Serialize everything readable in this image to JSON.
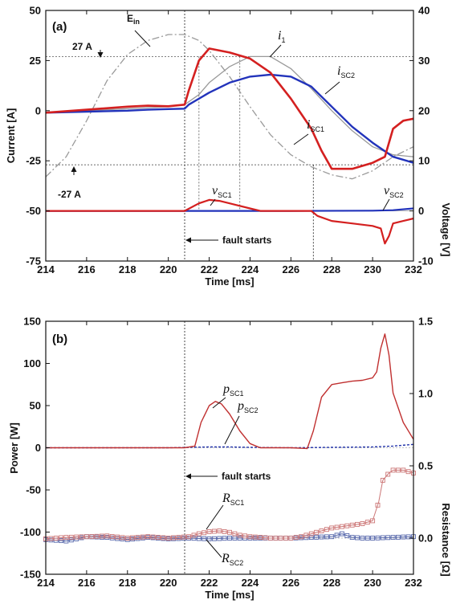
{
  "chart_data": [
    {
      "type": "line",
      "panel_label": "(a)",
      "xlabel": "Time [ms]",
      "ylabel": "Current [A]",
      "ylabel_right": "Voltage [V]",
      "xlim": [
        214,
        232
      ],
      "ylim": [
        -75,
        50
      ],
      "ylim_right": [
        -10,
        40
      ],
      "x_ticks": [
        "214",
        "216",
        "218",
        "220",
        "222",
        "224",
        "226",
        "228",
        "230",
        "232"
      ],
      "y_ticks": [
        "50",
        "25",
        "0",
        "-25",
        "-50",
        "-75"
      ],
      "y_ticks_right": [
        "40",
        "30",
        "20",
        "10",
        "0",
        "-10"
      ],
      "colors": {
        "i_sc1": "#d42020",
        "i_sc2": "#2233bb",
        "v_sc1": "#d42020",
        "v_sc2": "#2233bb",
        "i1": "#999999",
        "e_in": "#999999"
      },
      "series": [
        {
          "name": "i1",
          "axis": "left",
          "x": [
            214,
            216,
            218,
            219,
            220,
            220.8,
            221.5,
            222,
            223,
            224,
            225,
            226,
            227,
            228,
            229,
            230,
            231,
            232
          ],
          "values": [
            -1,
            0,
            1,
            1.5,
            2,
            3,
            8,
            14,
            22,
            27,
            27,
            21,
            11,
            0,
            -10,
            -18,
            -22,
            -23
          ]
        },
        {
          "name": "iSC1",
          "axis": "left",
          "x": [
            214,
            216,
            218,
            219,
            220,
            220.8,
            221,
            221.5,
            222,
            222.5,
            223,
            224,
            225,
            226,
            227,
            227.5,
            228,
            229,
            230,
            230.6,
            231,
            231.5,
            232
          ],
          "values": [
            -1,
            0.5,
            2,
            2.5,
            2.2,
            3,
            10,
            25,
            31,
            30,
            29,
            26,
            19,
            6,
            -9,
            -20,
            -29,
            -29,
            -26,
            -23,
            -9,
            -5,
            -4
          ]
        },
        {
          "name": "iSC2",
          "axis": "left",
          "x": [
            214,
            216,
            218,
            219,
            220,
            220.8,
            221,
            222,
            223,
            224,
            225,
            226,
            227,
            228,
            229,
            230,
            231,
            232
          ],
          "values": [
            -1,
            -0.5,
            0,
            0.5,
            0.8,
            1,
            3,
            9,
            14,
            17,
            18,
            17,
            12,
            2,
            -8,
            -16,
            -23,
            -26
          ]
        },
        {
          "name": "Ein",
          "axis": "left",
          "x": [
            214,
            215,
            216,
            217,
            218,
            219,
            220,
            220.8,
            221.5,
            222,
            223,
            224,
            225,
            226,
            227,
            228,
            229,
            230,
            231,
            232
          ],
          "values": [
            -33,
            -23,
            -5,
            15,
            28,
            35,
            38,
            38,
            35,
            30,
            17,
            2,
            -12,
            -22,
            -28,
            -32,
            -34,
            -30,
            -23,
            -18
          ]
        },
        {
          "name": "vSC1",
          "axis": "right",
          "x": [
            214,
            220.8,
            221.5,
            222,
            222.5,
            223,
            224,
            224.5,
            227,
            227.3,
            228,
            229,
            230,
            230.4,
            230.6,
            230.8,
            231,
            231.5,
            232
          ],
          "values": [
            0,
            0,
            1.5,
            2.2,
            2,
            1.5,
            0.5,
            0,
            0,
            -1,
            -2,
            -2.5,
            -3,
            -3.5,
            -6.5,
            -5,
            -2.5,
            -2,
            -1.5
          ]
        },
        {
          "name": "vSC2",
          "axis": "right",
          "x": [
            214,
            218,
            222,
            226,
            230,
            231,
            232
          ],
          "values": [
            0,
            0,
            0,
            0,
            0.05,
            0.15,
            0.5
          ]
        }
      ],
      "annotations": {
        "plus_27": "27 A",
        "minus_27": "-27 A",
        "fault": "fault starts",
        "fault_time_ms": 220.8,
        "clear_time_ms": 227.1,
        "e_in": "E",
        "e_in_sub": "in",
        "i1": "i",
        "i1_sub": "1",
        "i_sc2": "i",
        "i_sc2_sub": "SC2",
        "i_sc1": "i",
        "i_sc1_sub": "SC1",
        "v_sc1": "v",
        "v_sc1_sub": "SC1",
        "v_sc2": "v",
        "v_sc2_sub": "SC2"
      }
    },
    {
      "type": "line",
      "panel_label": "(b)",
      "xlabel": "Time [ms]",
      "ylabel": "Power [W]",
      "ylabel_right": "Resistance [Ω]",
      "xlim": [
        214,
        232
      ],
      "ylim": [
        -150,
        150
      ],
      "ylim_right": [
        -0.25,
        1.5
      ],
      "x_ticks": [
        "214",
        "216",
        "218",
        "220",
        "222",
        "224",
        "226",
        "228",
        "230",
        "232"
      ],
      "y_ticks": [
        "150",
        "100",
        "50",
        "0",
        "-50",
        "-100",
        "-150"
      ],
      "y_ticks_right": [
        "1.5",
        "1.0",
        "0.5",
        "0.0"
      ],
      "colors": {
        "p_sc1": "#c03030",
        "p_sc2": "#2233aa",
        "r_sc1": "#cc7777",
        "r_sc2": "#5566aa"
      },
      "series": [
        {
          "name": "pSC1",
          "axis": "left",
          "x": [
            214,
            220.8,
            221.3,
            221.6,
            222,
            222.3,
            222.6,
            223,
            223.5,
            224,
            224.5,
            226,
            226.8,
            227.1,
            227.5,
            228,
            228.5,
            229,
            229.5,
            230,
            230.2,
            230.4,
            230.6,
            230.8,
            231,
            231.5,
            232
          ],
          "values": [
            0,
            0,
            2,
            30,
            50,
            55,
            52,
            40,
            20,
            5,
            0,
            0,
            -1,
            20,
            60,
            75,
            77,
            79,
            80,
            83,
            90,
            118,
            135,
            110,
            65,
            30,
            10
          ]
        },
        {
          "name": "pSC2",
          "axis": "left",
          "x": [
            214,
            220,
            222,
            223,
            224,
            226,
            228,
            230,
            231,
            232
          ],
          "values": [
            0,
            0,
            1,
            1,
            0.5,
            0,
            0.5,
            1,
            2,
            4
          ]
        },
        {
          "name": "RSC1",
          "axis": "right",
          "x": [
            214,
            215,
            216,
            217,
            218,
            219,
            220,
            221,
            221.5,
            222,
            222.5,
            223,
            223.5,
            224,
            225,
            226,
            226.5,
            227,
            227.5,
            228,
            228.5,
            229,
            229.5,
            230,
            230.3,
            230.5,
            230.8,
            231,
            231.5,
            232
          ],
          "values": [
            -0.005,
            0.005,
            0.01,
            0.015,
            0,
            0.01,
            0,
            0.01,
            0.03,
            0.045,
            0.05,
            0.04,
            0.02,
            0.01,
            0,
            0,
            0.01,
            0.03,
            0.05,
            0.07,
            0.08,
            0.09,
            0.1,
            0.12,
            0.25,
            0.4,
            0.45,
            0.47,
            0.47,
            0.45
          ]
        },
        {
          "name": "RSC2",
          "axis": "right",
          "x": [
            214,
            215,
            216,
            217,
            218,
            219,
            220,
            221,
            222,
            223,
            224,
            225,
            226,
            227,
            228,
            228.5,
            229,
            229.5,
            230,
            231,
            232
          ],
          "values": [
            -0.01,
            -0.02,
            0.01,
            0.005,
            -0.01,
            0.005,
            -0.005,
            0,
            -0.005,
            0,
            0,
            0,
            0,
            0.005,
            0.01,
            0.03,
            0.005,
            0,
            0,
            0.005,
            0.01
          ]
        }
      ],
      "annotations": {
        "fault": "fault starts",
        "fault_time_ms": 220.8,
        "p_sc1": "p",
        "p_sc1_sub": "SC1",
        "p_sc2": "p",
        "p_sc2_sub": "SC2",
        "r_sc1": "R",
        "r_sc1_sub": "SC1",
        "r_sc2": "R",
        "r_sc2_sub": "SC2"
      }
    }
  ]
}
